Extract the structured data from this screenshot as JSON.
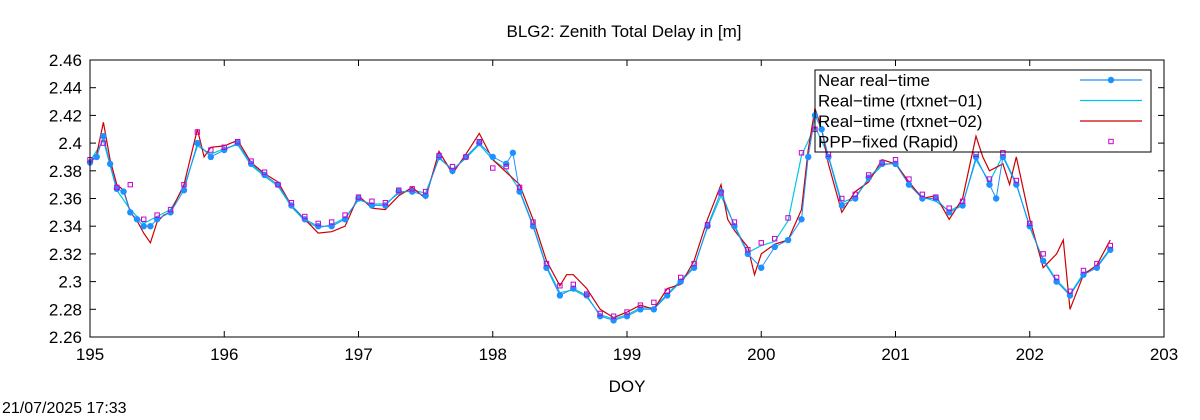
{
  "chart_data": {
    "type": "line",
    "title": "BLG2: Zenith Total Delay in [m]",
    "xlabel": "DOY",
    "ylabel": "",
    "xlim": [
      195,
      203
    ],
    "ylim": [
      2.26,
      2.46
    ],
    "x_ticks": [
      "195",
      "196",
      "197",
      "198",
      "199",
      "200",
      "201",
      "202",
      "203"
    ],
    "y_ticks": [
      "2.26",
      "2.28",
      "2.3",
      "2.32",
      "2.34",
      "2.36",
      "2.38",
      "2.4",
      "2.42",
      "2.44",
      "2.46"
    ],
    "grid": false,
    "legend_position": "top-right",
    "series": [
      {
        "name": "Near real−time",
        "color": "#1e90ff",
        "style": "line-points",
        "x": [
          195.0,
          195.05,
          195.1,
          195.15,
          195.2,
          195.25,
          195.3,
          195.35,
          195.4,
          195.45,
          195.5,
          195.6,
          195.7,
          195.8,
          195.9,
          196.0,
          196.1,
          196.2,
          196.3,
          196.4,
          196.5,
          196.6,
          196.7,
          196.8,
          196.9,
          197.0,
          197.1,
          197.2,
          197.3,
          197.4,
          197.5,
          197.6,
          197.7,
          197.8,
          197.9,
          198.0,
          198.1,
          198.15,
          198.2,
          198.3,
          198.4,
          198.5,
          198.6,
          198.7,
          198.8,
          198.9,
          199.0,
          199.1,
          199.2,
          199.3,
          199.4,
          199.5,
          199.6,
          199.7,
          199.8,
          199.9,
          200.0,
          200.1,
          200.2,
          200.3,
          200.35,
          200.4,
          200.45,
          200.5,
          200.6,
          200.7,
          200.8,
          200.9,
          201.0,
          201.1,
          201.2,
          201.3,
          201.4,
          201.5,
          201.6,
          201.7,
          201.75,
          201.8,
          201.9,
          202.0,
          202.1,
          202.2,
          202.3,
          202.4,
          202.5,
          202.6
        ],
        "y": [
          2.386,
          2.39,
          2.405,
          2.385,
          2.367,
          2.365,
          2.35,
          2.345,
          2.34,
          2.34,
          2.345,
          2.35,
          2.366,
          2.4,
          2.39,
          2.395,
          2.4,
          2.385,
          2.377,
          2.37,
          2.355,
          2.345,
          2.34,
          2.34,
          2.345,
          2.36,
          2.355,
          2.355,
          2.365,
          2.365,
          2.362,
          2.39,
          2.38,
          2.39,
          2.4,
          2.39,
          2.385,
          2.393,
          2.365,
          2.34,
          2.31,
          2.29,
          2.295,
          2.29,
          2.275,
          2.272,
          2.275,
          2.28,
          2.28,
          2.29,
          2.3,
          2.31,
          2.34,
          2.365,
          2.34,
          2.32,
          2.31,
          2.325,
          2.33,
          2.345,
          2.39,
          2.42,
          2.41,
          2.39,
          2.355,
          2.36,
          2.375,
          2.385,
          2.385,
          2.37,
          2.36,
          2.36,
          2.35,
          2.355,
          2.39,
          2.37,
          2.36,
          2.39,
          2.37,
          2.34,
          2.315,
          2.3,
          2.29,
          2.305,
          2.31,
          2.323
        ]
      },
      {
        "name": "Real−time (rtxnet−01)",
        "color": "#00c8e0",
        "style": "line",
        "x": [
          195.0,
          195.1,
          195.2,
          195.3,
          195.4,
          195.5,
          195.6,
          195.7,
          195.8,
          195.9,
          196.0,
          196.1,
          196.2,
          196.3,
          196.4,
          196.5,
          196.6,
          196.7,
          196.8,
          196.9,
          197.0,
          197.1,
          197.2,
          197.3,
          197.4,
          197.5,
          197.6,
          197.7,
          197.8,
          197.9,
          198.0,
          198.1,
          198.2,
          198.3,
          198.4,
          198.5,
          198.6,
          198.7,
          198.8,
          198.9,
          199.0,
          199.1,
          199.2,
          199.3,
          199.4,
          199.5,
          199.6,
          199.7,
          199.8,
          199.9,
          200.0,
          200.1,
          200.2,
          200.3,
          200.4,
          200.5,
          200.6,
          200.7,
          200.8,
          200.9,
          201.0,
          201.1,
          201.2,
          201.3,
          201.4,
          201.5,
          201.6,
          201.7,
          201.8,
          201.9,
          202.0,
          202.1,
          202.2,
          202.3,
          202.4,
          202.5,
          202.6
        ],
        "y": [
          2.387,
          2.402,
          2.366,
          2.352,
          2.342,
          2.347,
          2.352,
          2.368,
          2.398,
          2.392,
          2.396,
          2.399,
          2.384,
          2.376,
          2.369,
          2.354,
          2.344,
          2.339,
          2.341,
          2.346,
          2.359,
          2.356,
          2.356,
          2.364,
          2.366,
          2.364,
          2.389,
          2.381,
          2.389,
          2.399,
          2.388,
          2.381,
          2.366,
          2.341,
          2.311,
          2.292,
          2.294,
          2.289,
          2.276,
          2.273,
          2.276,
          2.281,
          2.281,
          2.291,
          2.301,
          2.311,
          2.339,
          2.362,
          2.341,
          2.321,
          2.326,
          2.329,
          2.344,
          2.391,
          2.412,
          2.391,
          2.357,
          2.361,
          2.374,
          2.384,
          2.386,
          2.371,
          2.361,
          2.358,
          2.351,
          2.356,
          2.388,
          2.372,
          2.391,
          2.371,
          2.339,
          2.316,
          2.301,
          2.291,
          2.306,
          2.311,
          2.324
        ]
      },
      {
        "name": "Real−time (rtxnet−02)",
        "color": "#cc0000",
        "style": "line",
        "x": [
          195.0,
          195.05,
          195.1,
          195.15,
          195.2,
          195.25,
          195.3,
          195.35,
          195.4,
          195.45,
          195.5,
          195.55,
          195.6,
          195.7,
          195.8,
          195.85,
          195.9,
          196.0,
          196.1,
          196.2,
          196.3,
          196.4,
          196.5,
          196.6,
          196.7,
          196.8,
          196.9,
          197.0,
          197.1,
          197.2,
          197.3,
          197.4,
          197.5,
          197.6,
          197.7,
          197.8,
          197.9,
          198.0,
          198.1,
          198.2,
          198.3,
          198.4,
          198.5,
          198.55,
          198.6,
          198.7,
          198.8,
          198.9,
          199.0,
          199.1,
          199.2,
          199.3,
          199.4,
          199.5,
          199.6,
          199.7,
          199.75,
          199.8,
          199.9,
          199.95,
          200.0,
          200.1,
          200.2,
          200.3,
          200.35,
          200.4,
          200.45,
          200.5,
          200.6,
          200.7,
          200.8,
          200.9,
          201.0,
          201.1,
          201.2,
          201.3,
          201.4,
          201.5,
          201.6,
          201.65,
          201.7,
          201.8,
          201.85,
          201.9,
          202.0,
          202.1,
          202.2,
          202.25,
          202.3,
          202.4,
          202.5,
          202.6
        ],
        "y": [
          2.385,
          2.392,
          2.415,
          2.388,
          2.37,
          2.366,
          2.35,
          2.344,
          2.335,
          2.328,
          2.343,
          2.348,
          2.35,
          2.37,
          2.41,
          2.39,
          2.397,
          2.398,
          2.402,
          2.386,
          2.378,
          2.372,
          2.355,
          2.345,
          2.335,
          2.336,
          2.34,
          2.362,
          2.353,
          2.352,
          2.362,
          2.368,
          2.36,
          2.394,
          2.378,
          2.392,
          2.407,
          2.388,
          2.379,
          2.37,
          2.345,
          2.315,
          2.297,
          2.305,
          2.305,
          2.295,
          2.28,
          2.274,
          2.278,
          2.283,
          2.28,
          2.295,
          2.298,
          2.315,
          2.345,
          2.37,
          2.345,
          2.337,
          2.325,
          2.305,
          2.32,
          2.327,
          2.33,
          2.352,
          2.395,
          2.425,
          2.41,
          2.385,
          2.35,
          2.365,
          2.372,
          2.388,
          2.385,
          2.372,
          2.36,
          2.362,
          2.345,
          2.36,
          2.405,
          2.39,
          2.38,
          2.385,
          2.37,
          2.39,
          2.345,
          2.31,
          2.32,
          2.33,
          2.28,
          2.305,
          2.312,
          2.33
        ]
      },
      {
        "name": "PPP−fixed (Rapid)",
        "color": "#cc00cc",
        "style": "points",
        "x": [
          195.0,
          195.1,
          195.2,
          195.3,
          195.4,
          195.5,
          195.6,
          195.7,
          195.8,
          195.9,
          196.0,
          196.1,
          196.2,
          196.3,
          196.4,
          196.5,
          196.6,
          196.7,
          196.8,
          196.9,
          197.0,
          197.1,
          197.2,
          197.3,
          197.4,
          197.5,
          197.6,
          197.7,
          197.8,
          197.9,
          198.0,
          198.1,
          198.2,
          198.3,
          198.4,
          198.5,
          198.6,
          198.7,
          198.8,
          198.9,
          199.0,
          199.1,
          199.2,
          199.3,
          199.4,
          199.5,
          199.6,
          199.7,
          199.8,
          199.9,
          200.0,
          200.1,
          200.2,
          200.3,
          200.4,
          200.5,
          200.6,
          200.7,
          200.8,
          200.9,
          201.0,
          201.1,
          201.2,
          201.3,
          201.4,
          201.5,
          201.6,
          201.7,
          201.8,
          201.9,
          202.0,
          202.1,
          202.2,
          202.3,
          202.4,
          202.5,
          202.6
        ],
        "y": [
          2.388,
          2.4,
          2.368,
          2.37,
          2.345,
          2.348,
          2.352,
          2.37,
          2.408,
          2.395,
          2.397,
          2.401,
          2.387,
          2.379,
          2.37,
          2.357,
          2.347,
          2.342,
          2.343,
          2.348,
          2.361,
          2.358,
          2.357,
          2.366,
          2.367,
          2.365,
          2.391,
          2.383,
          2.39,
          2.401,
          2.382,
          2.383,
          2.368,
          2.343,
          2.313,
          2.297,
          2.298,
          2.291,
          2.277,
          2.275,
          2.278,
          2.283,
          2.285,
          2.293,
          2.303,
          2.313,
          2.341,
          2.364,
          2.343,
          2.323,
          2.328,
          2.331,
          2.346,
          2.393,
          2.41,
          2.392,
          2.36,
          2.363,
          2.377,
          2.386,
          2.388,
          2.374,
          2.363,
          2.361,
          2.353,
          2.358,
          2.392,
          2.374,
          2.393,
          2.373,
          2.342,
          2.32,
          2.303,
          2.293,
          2.308,
          2.313,
          2.326
        ]
      }
    ]
  },
  "footer": {
    "timestamp": "21/07/2025 17:33"
  }
}
